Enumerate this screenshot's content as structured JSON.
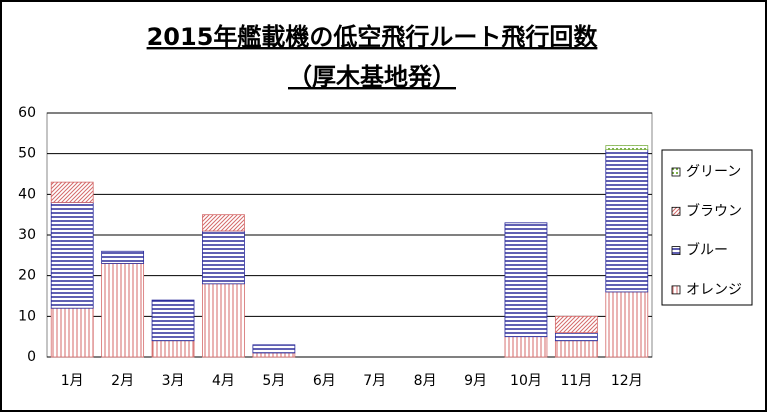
{
  "chart_data": {
    "type": "stacked-bar",
    "title": "2015年艦載機の低空飛行ルート飛行回数",
    "subtitle": "（厚木基地発）",
    "categories": [
      "1月",
      "2月",
      "3月",
      "4月",
      "5月",
      "6月",
      "7月",
      "8月",
      "9月",
      "10月",
      "11月",
      "12月"
    ],
    "series": [
      {
        "name": "オレンジ",
        "color": "#d46a6a",
        "hatch": "vertical",
        "values": [
          12,
          23,
          4,
          18,
          1,
          0,
          0,
          0,
          0,
          5,
          4,
          16
        ]
      },
      {
        "name": "ブルー",
        "color": "#2a2a9a",
        "hatch": "horizontal",
        "values": [
          26,
          3,
          10,
          13,
          2,
          0,
          0,
          0,
          0,
          28,
          2,
          35
        ]
      },
      {
        "name": "ブラウン",
        "color": "#d46a6a",
        "hatch": "diagonal",
        "values": [
          5,
          0,
          0,
          4,
          0,
          0,
          0,
          0,
          0,
          0,
          4,
          0
        ]
      },
      {
        "name": "グリーン",
        "color": "#7fb24a",
        "hatch": "dots",
        "values": [
          0,
          0,
          0,
          0,
          0,
          0,
          0,
          0,
          0,
          0,
          0,
          1
        ]
      }
    ],
    "ylim": [
      0,
      60
    ],
    "yticks": [
      0,
      10,
      20,
      30,
      40,
      50,
      60
    ],
    "grid": true,
    "legend": "right"
  }
}
